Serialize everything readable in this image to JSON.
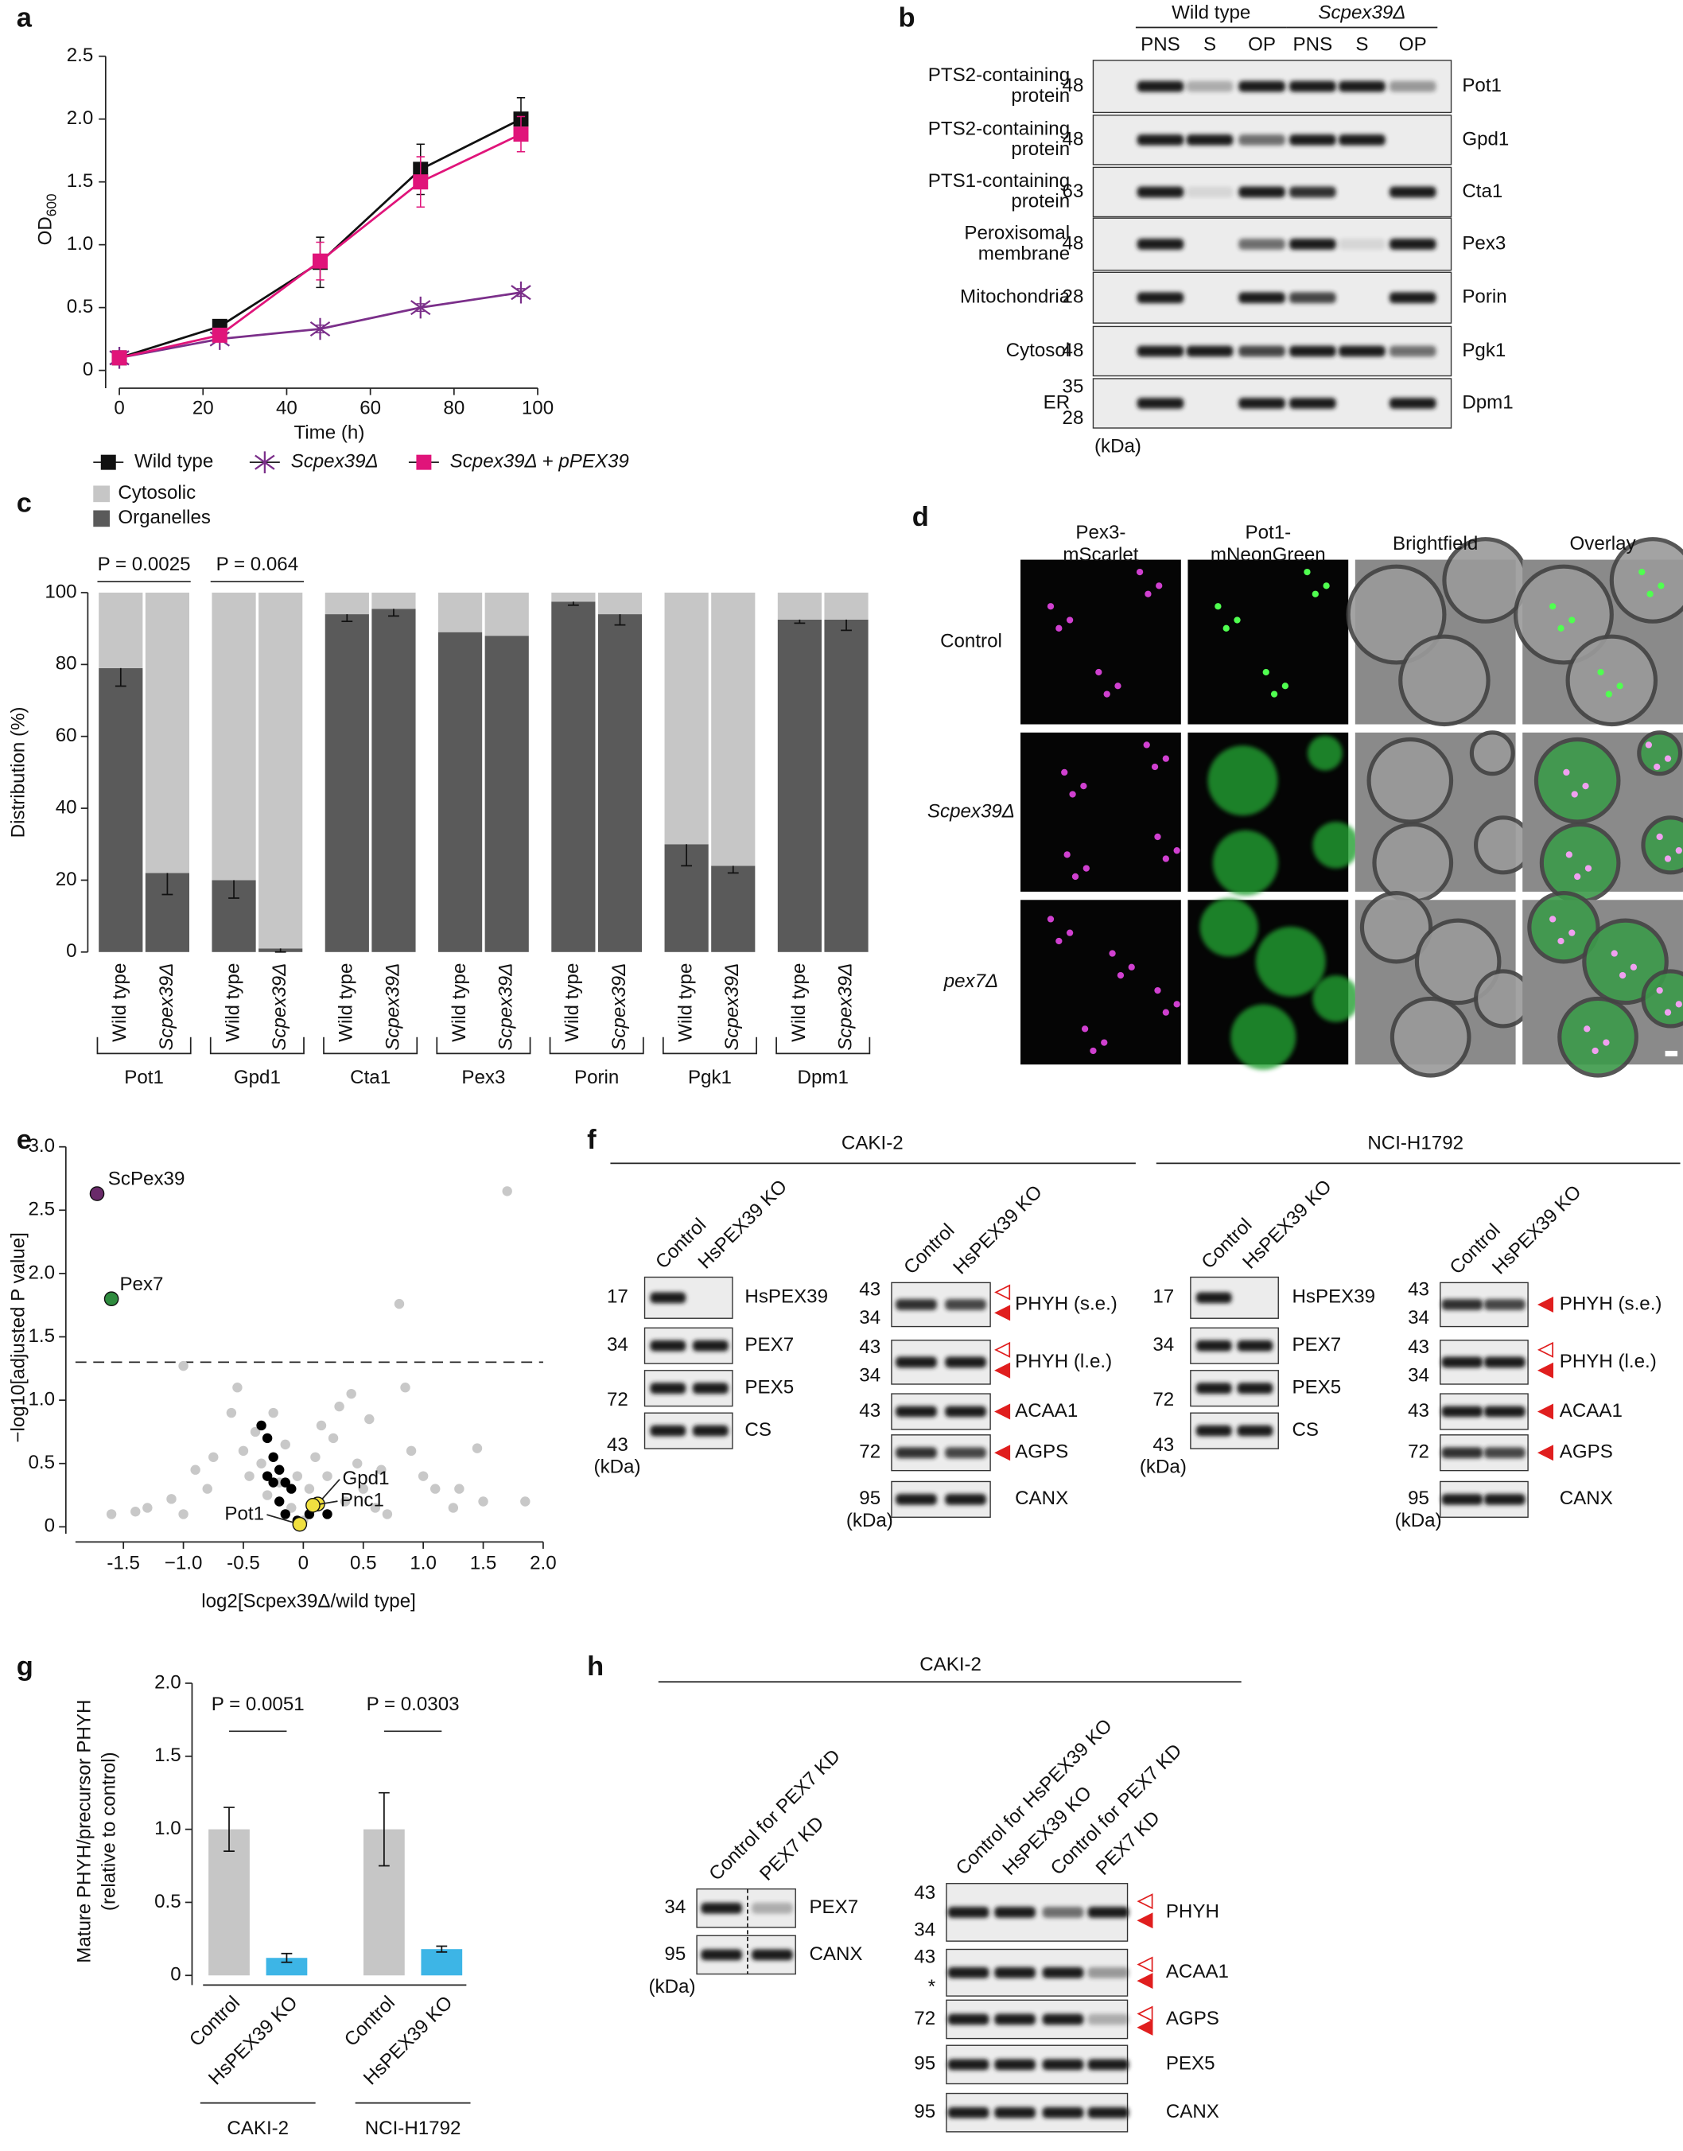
{
  "panel_labels": [
    "a",
    "b",
    "c",
    "d",
    "e",
    "f",
    "g",
    "h"
  ],
  "chart_data": [
    {
      "type": "line",
      "x_label": "Time (h)",
      "y_label": "OD",
      "y_label_sub": "600",
      "x": [
        0,
        24,
        48,
        72,
        96
      ],
      "xlim": [
        0,
        100
      ],
      "xticks": [
        0,
        20,
        40,
        60,
        80,
        100
      ],
      "ylim": [
        0,
        2.5
      ],
      "yticks": [
        0,
        0.5,
        {
          "value": 1,
          "label": "1.0"
        },
        1.5,
        {
          "value": 2,
          "label": "2.0"
        },
        2.5
      ],
      "series": [
        {
          "name": "Wild type",
          "color": "#111111",
          "marker": "square",
          "values": [
            0.1,
            0.35,
            0.86,
            1.6,
            2.0
          ],
          "errors": [
            0,
            0.03,
            0.2,
            0.2,
            0.17
          ]
        },
        {
          "name": "Scpex39Δ",
          "color": "#7b2f8a",
          "marker": "asterisk",
          "values": [
            0.1,
            0.25,
            0.33,
            0.5,
            0.62
          ],
          "errors": [
            0,
            0.02,
            0.03,
            0.03,
            0.03
          ]
        },
        {
          "name": "Scpex39Δ + pPEX39",
          "color": "#e0147a",
          "marker": "square",
          "values": [
            0.1,
            0.28,
            0.87,
            1.5,
            1.88
          ],
          "errors": [
            0,
            0.02,
            0.15,
            0.2,
            0.14
          ]
        }
      ]
    },
    {
      "type": "stacked_bar",
      "y_label": "Distribution (%)",
      "categories": [
        "Wild type",
        "Scpex39Δ",
        "Wild type",
        "Scpex39Δ",
        "Wild type",
        "Scpex39Δ",
        "Wild type",
        "Scpex39Δ",
        "Wild type",
        "Scpex39Δ",
        "Wild type",
        "Scpex39Δ",
        "Wild type",
        "Scpex39Δ"
      ],
      "groups": [
        "Pot1",
        "Gpd1",
        "Cta1",
        "Pex3",
        "Porin",
        "Pgk1",
        "Dpm1"
      ],
      "ylim": [
        0,
        100
      ],
      "yticks": [
        0,
        20,
        40,
        60,
        80,
        100
      ],
      "p_values": [
        "P = 0.0025",
        "P = 0.064"
      ],
      "series": [
        {
          "name": "Cytosolic",
          "color": "#c6c6c6",
          "values": [
            21,
            78,
            80,
            99,
            6,
            4.5,
            11,
            12,
            2.5,
            6,
            70,
            76,
            7.5,
            7.5
          ]
        },
        {
          "name": "Organelles",
          "color": "#5a5a5a",
          "values": [
            79,
            22,
            20,
            1,
            94,
            95.5,
            89,
            88,
            97.5,
            94,
            30,
            24,
            92.5,
            92.5
          ],
          "errors": [
            5,
            6,
            5,
            1,
            2,
            2,
            0,
            0,
            1,
            3,
            6,
            2,
            1,
            3
          ]
        }
      ]
    },
    {
      "type": "scatter",
      "x_label": "log2[Scpex39Δ/wild type]",
      "y_label": "−log10[adjusted P value]",
      "xlim": [
        -1.9,
        2.0
      ],
      "xticks": [
        -1.5,
        {
          "value": -1,
          "label": "−1.0"
        },
        -0.5,
        0,
        0.5,
        {
          "value": 1,
          "label": "1.0"
        },
        1.5,
        {
          "value": 2,
          "label": "2.0"
        }
      ],
      "ylim": [
        0,
        3.0
      ],
      "yticks": [
        0,
        0.5,
        {
          "value": 1,
          "label": "1.0"
        },
        1.5,
        {
          "value": 2,
          "label": "2.0"
        },
        2.5,
        {
          "value": 3,
          "label": "3.0"
        }
      ],
      "threshold": 1.3,
      "series": [
        {
          "color": "#c8c8c8",
          "x": [
            -1.6,
            -1.4,
            -1.3,
            -1.1,
            -1.0,
            -0.9,
            -0.8,
            -0.75,
            -0.6,
            -0.55,
            -0.5,
            -0.45,
            -0.4,
            -0.35,
            -0.3,
            -0.25,
            -0.2,
            -0.15,
            -0.1,
            -0.05,
            0.0,
            0.05,
            0.1,
            0.15,
            0.2,
            0.25,
            0.3,
            0.35,
            0.4,
            0.45,
            0.5,
            0.55,
            0.6,
            0.65,
            0.7,
            0.8,
            0.9,
            1.0,
            1.1,
            1.25,
            1.3,
            1.45,
            1.5,
            1.7,
            1.85,
            -1.0,
            0.85
          ],
          "values": [
            0.1,
            0.12,
            0.15,
            0.22,
            0.1,
            0.45,
            0.3,
            0.55,
            0.9,
            1.1,
            0.6,
            0.4,
            0.75,
            0.5,
            0.25,
            0.9,
            0.35,
            0.65,
            0.15,
            0.4,
            0.05,
            0.3,
            0.55,
            0.8,
            0.4,
            0.7,
            0.95,
            0.2,
            1.05,
            0.5,
            0.3,
            0.85,
            0.15,
            0.45,
            0.1,
            1.76,
            0.6,
            0.4,
            0.3,
            0.15,
            0.3,
            0.62,
            0.2,
            2.65,
            0.2,
            1.27,
            1.1
          ]
        },
        {
          "color": "#000000",
          "x": [
            -0.35,
            -0.3,
            -0.25,
            -0.2,
            -0.15,
            -0.1,
            -0.2,
            -0.15,
            -0.05,
            0.05,
            0.2,
            -0.25,
            -0.3
          ],
          "values": [
            0.8,
            0.7,
            0.55,
            0.45,
            0.35,
            0.3,
            0.2,
            0.1,
            0.05,
            0.1,
            0.1,
            0.35,
            0.4
          ]
        }
      ],
      "labeled": [
        {
          "label": "ScPex39",
          "x": -1.72,
          "y": 2.63,
          "color": "#6a2a6a"
        },
        {
          "label": "Pex7",
          "x": -1.6,
          "y": 1.8,
          "color": "#2e8b3e"
        },
        {
          "label": "Gpd1",
          "x": 0.12,
          "y": 0.18,
          "color": "#f0e040"
        },
        {
          "label": "Pnc1",
          "x": 0.08,
          "y": 0.17,
          "color": "#f0e040"
        },
        {
          "label": "Pot1",
          "x": -0.03,
          "y": 0.02,
          "color": "#f0e040"
        }
      ]
    },
    {
      "type": "bar",
      "y_label": [
        "Mature PHYH/precursor PHYH",
        "(relative to control)"
      ],
      "categories": [
        "Control",
        "HsPEX39 KO",
        "Control",
        "HsPEX39 KO"
      ],
      "groups": [
        "CAKI-2",
        "NCI-H1792"
      ],
      "values": [
        1.0,
        0.12,
        1.0,
        0.18
      ],
      "errors": [
        0.15,
        0.03,
        0.25,
        0.02
      ],
      "colors": [
        "#c6c6c6",
        "#3db5e6",
        "#c6c6c6",
        "#3db5e6"
      ],
      "p_values": [
        "P = 0.0051",
        "P = 0.0303"
      ],
      "ylim": [
        0,
        2.0
      ],
      "yticks": [
        0,
        0.5,
        {
          "value": 1,
          "label": "1.0"
        },
        1.5,
        {
          "value": 2,
          "label": "2.0"
        }
      ]
    }
  ],
  "blot_b": {
    "groups": [
      "Wild type",
      "Scpex39Δ"
    ],
    "lanes": [
      "PNS",
      "S",
      "OP",
      "PNS",
      "S",
      "OP"
    ],
    "rows": [
      {
        "label": [
          "PTS2-containing",
          "protein"
        ],
        "markers": [
          "48"
        ],
        "protein": "Pot1"
      },
      {
        "label": [
          "PTS2-containing",
          "protein"
        ],
        "markers": [
          "48"
        ],
        "protein": "Gpd1"
      },
      {
        "label": [
          "PTS1-containing",
          "protein"
        ],
        "markers": [
          "63"
        ],
        "protein": "Cta1"
      },
      {
        "label": [
          "Peroxisomal",
          "membrane"
        ],
        "markers": [
          "48"
        ],
        "protein": "Pex3"
      },
      {
        "label": [
          "Mitochondria"
        ],
        "markers": [
          "28"
        ],
        "protein": "Porin"
      },
      {
        "label": [
          "Cytosol"
        ],
        "markers": [
          "48"
        ],
        "protein": "Pgk1"
      },
      {
        "label": [
          "ER"
        ],
        "markers": [
          "35",
          "28"
        ],
        "protein": "Dpm1"
      }
    ],
    "unit": "(kDa)"
  },
  "microscopy_d": {
    "columns": [
      [
        "Pex3-",
        "mScarlet"
      ],
      [
        "Pot1-",
        "mNeonGreen"
      ],
      [
        "Brightfield"
      ],
      [
        "Overlay"
      ]
    ],
    "rows": [
      "Control",
      "Scpex39Δ",
      "pex7Δ"
    ]
  },
  "blots_f": {
    "cell_lines": [
      "CAKI-2",
      "NCI-H1792"
    ],
    "blots": [
      {
        "lanes": [
          "Control",
          "HsPEX39 KO"
        ],
        "rows": [
          {
            "markers": [
              "17"
            ],
            "protein": "HsPEX39"
          },
          {
            "markers": [
              "34"
            ],
            "protein": "PEX7"
          },
          {
            "markers": [
              "72"
            ],
            "protein": "PEX5"
          },
          {
            "markers": [
              "43"
            ],
            "protein": "CS"
          }
        ],
        "unit": "(kDa)"
      },
      {
        "lanes": [
          "Control",
          "HsPEX39 KO"
        ],
        "rows": [
          {
            "markers": [
              "43",
              "34"
            ],
            "protein": "PHYH (s.e.)"
          },
          {
            "markers": [
              "43",
              "34"
            ],
            "protein": "PHYH (l.e.)"
          },
          {
            "markers": [
              "43"
            ],
            "protein": "ACAA1"
          },
          {
            "markers": [
              "72"
            ],
            "protein": "AGPS"
          },
          {
            "markers": [
              "95"
            ],
            "protein": "CANX"
          }
        ],
        "unit": "(kDa)"
      },
      {
        "lanes": [
          "Control",
          "HsPEX39 KO"
        ],
        "rows": [
          {
            "markers": [
              "17"
            ],
            "protein": "HsPEX39"
          },
          {
            "markers": [
              "34"
            ],
            "protein": "PEX7"
          },
          {
            "markers": [
              "72"
            ],
            "protein": "PEX5"
          },
          {
            "markers": [
              "43"
            ],
            "protein": "CS"
          }
        ],
        "unit": "(kDa)"
      },
      {
        "lanes": [
          "Control",
          "HsPEX39 KO"
        ],
        "rows": [
          {
            "markers": [
              "43",
              "34"
            ],
            "protein": "PHYH (s.e.)"
          },
          {
            "markers": [
              "43",
              "34"
            ],
            "protein": "PHYH (l.e.)"
          },
          {
            "markers": [
              "43"
            ],
            "protein": "ACAA1"
          },
          {
            "markers": [
              "72"
            ],
            "protein": "AGPS"
          },
          {
            "markers": [
              "95"
            ],
            "protein": "CANX"
          }
        ],
        "unit": "(kDa)"
      }
    ]
  },
  "blots_h": {
    "cell_line": "CAKI-2",
    "blots": [
      {
        "lanes": [
          "Control for PEX7 KD",
          "PEX7 KD"
        ],
        "rows": [
          {
            "markers": [
              "34"
            ],
            "protein": "PEX7"
          },
          {
            "markers": [
              "95"
            ],
            "protein": "CANX"
          }
        ],
        "unit": "(kDa)"
      },
      {
        "lanes": [
          "Control for HsPEX39 KO",
          "HsPEX39 KO",
          "Control for PEX7 KD",
          "PEX7 KD"
        ],
        "rows": [
          {
            "markers": [
              "43",
              "34"
            ],
            "protein": "PHYH"
          },
          {
            "markers": [
              "43",
              "*"
            ],
            "protein": "ACAA1"
          },
          {
            "markers": [
              "72"
            ],
            "protein": "AGPS"
          },
          {
            "markers": [
              "95"
            ],
            "protein": "PEX5"
          },
          {
            "markers": [
              "95"
            ],
            "protein": "CANX"
          }
        ]
      }
    ]
  }
}
